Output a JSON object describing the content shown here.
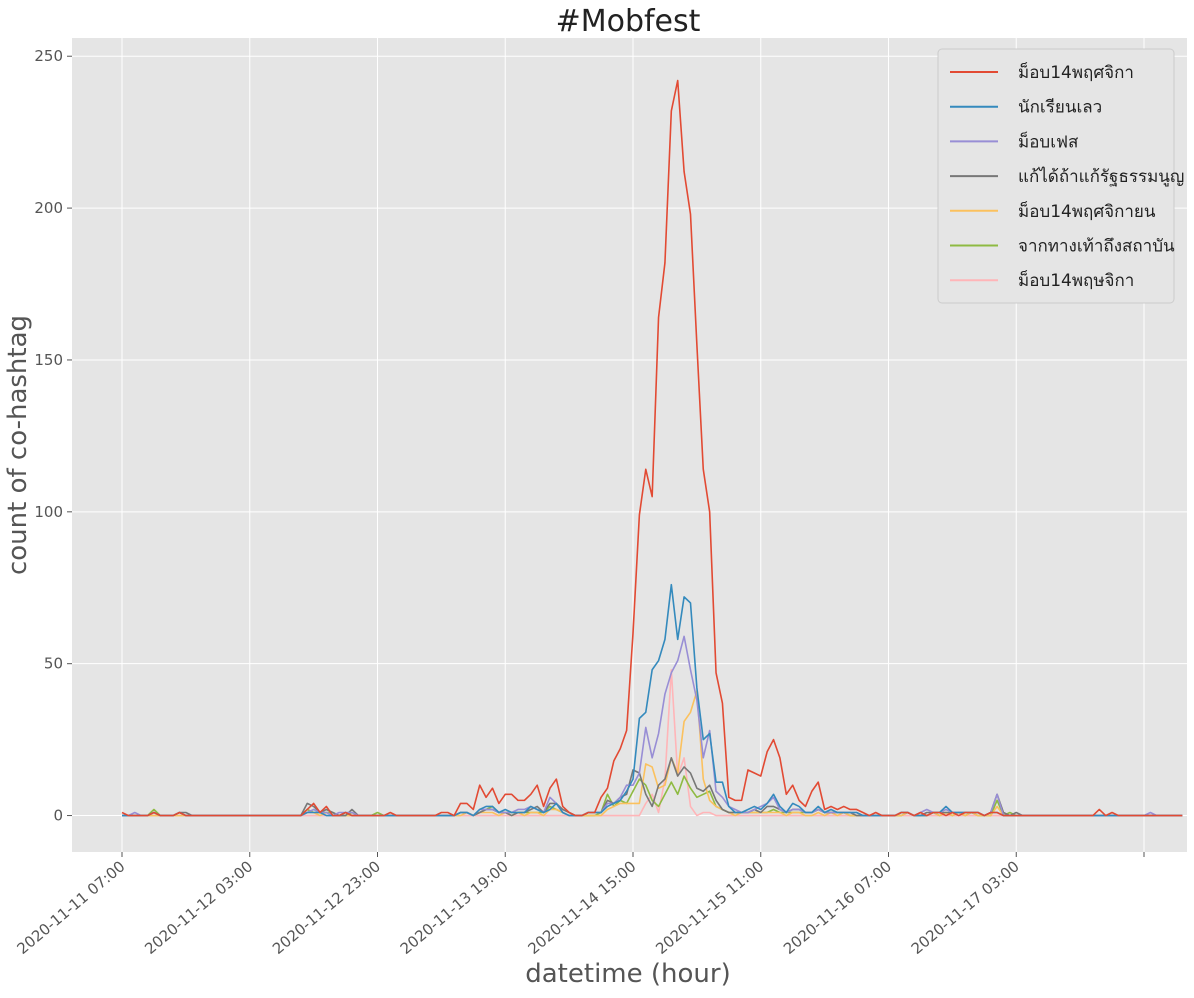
{
  "chart_data": {
    "type": "line",
    "title": "#Mobfest",
    "xlabel": "datetime (hour)",
    "ylabel": "count of co-hashtag",
    "ylim": [
      -12,
      256
    ],
    "yticks": [
      0,
      50,
      100,
      150,
      200,
      250
    ],
    "x_start": "2020-11-11 07:00",
    "x_step_hours": 1,
    "xticks": [
      "2020-11-11 07:00",
      "2020-11-12 03:00",
      "2020-11-12 23:00",
      "2020-11-13 19:00",
      "2020-11-14 15:00",
      "2020-11-15 11:00",
      "2020-11-16 07:00",
      "2020-11-17 03:00"
    ],
    "grid": true,
    "legend_position": "top-right",
    "series": [
      {
        "name": "ม็อบ14พฤศจิกา",
        "color": "#E24A33",
        "values": [
          1,
          0,
          0,
          0,
          0,
          1,
          0,
          0,
          0,
          1,
          0,
          0,
          0,
          0,
          0,
          0,
          0,
          0,
          0,
          0,
          0,
          0,
          0,
          0,
          0,
          0,
          0,
          0,
          0,
          2,
          4,
          1,
          3,
          0,
          0,
          1,
          0,
          0,
          0,
          0,
          0,
          0,
          1,
          0,
          0,
          0,
          0,
          0,
          0,
          0,
          1,
          1,
          0,
          4,
          4,
          2,
          10,
          6,
          9,
          4,
          7,
          7,
          5,
          5,
          7,
          10,
          3,
          9,
          12,
          3,
          1,
          0,
          0,
          1,
          1,
          6,
          9,
          18,
          22,
          28,
          60,
          99,
          114,
          105,
          164,
          182,
          232,
          242,
          212,
          198,
          155,
          114,
          100,
          47,
          37,
          6,
          5,
          5,
          15,
          14,
          13,
          21,
          25,
          19,
          7,
          10,
          5,
          3,
          8,
          11,
          2,
          3,
          2,
          3,
          2,
          2,
          1,
          0,
          1,
          0,
          0,
          0,
          1,
          1,
          0,
          1,
          0,
          1,
          1,
          0,
          1,
          0,
          1,
          1,
          1,
          0,
          1,
          1,
          0,
          0,
          0,
          0,
          0,
          0,
          0,
          0,
          0,
          0,
          0,
          0,
          0,
          0,
          0,
          2,
          0,
          1,
          0,
          0,
          0,
          0,
          0,
          0,
          0,
          0,
          0,
          0,
          0
        ]
      },
      {
        "name": "นักเรียนเลว",
        "color": "#348ABD",
        "values": [
          0,
          0,
          0,
          0,
          0,
          1,
          0,
          0,
          0,
          1,
          0,
          0,
          0,
          0,
          0,
          0,
          0,
          0,
          0,
          0,
          0,
          0,
          0,
          0,
          0,
          0,
          0,
          0,
          0,
          1,
          1,
          1,
          0,
          0,
          0,
          1,
          0,
          0,
          0,
          0,
          0,
          0,
          0,
          0,
          0,
          0,
          0,
          0,
          0,
          0,
          0,
          0,
          0,
          1,
          1,
          0,
          2,
          3,
          3,
          1,
          2,
          1,
          1,
          1,
          3,
          2,
          1,
          2,
          4,
          1,
          0,
          0,
          0,
          1,
          1,
          1,
          3,
          4,
          5,
          8,
          12,
          32,
          34,
          48,
          51,
          58,
          76,
          58,
          72,
          70,
          42,
          25,
          27,
          11,
          11,
          3,
          1,
          1,
          2,
          3,
          2,
          4,
          7,
          3,
          1,
          4,
          3,
          1,
          1,
          3,
          1,
          2,
          1,
          1,
          1,
          1,
          0,
          0,
          0,
          0,
          0,
          0,
          1,
          1,
          0,
          0,
          0,
          1,
          1,
          3,
          1,
          1,
          1,
          1,
          1,
          0,
          1,
          1,
          0,
          0,
          0,
          0,
          0,
          0,
          0,
          0,
          0,
          0,
          0,
          0,
          0,
          0,
          0,
          0,
          0,
          0,
          0,
          0,
          0,
          0,
          0,
          0,
          0,
          0,
          0,
          0,
          0
        ]
      },
      {
        "name": "ม็อบเฟส",
        "color": "#988ED5",
        "values": [
          0,
          0,
          1,
          0,
          0,
          1,
          0,
          0,
          0,
          1,
          0,
          0,
          0,
          0,
          0,
          0,
          0,
          0,
          0,
          0,
          0,
          0,
          0,
          0,
          0,
          0,
          0,
          0,
          0,
          1,
          2,
          1,
          1,
          0,
          1,
          1,
          1,
          0,
          0,
          0,
          0,
          0,
          0,
          0,
          0,
          0,
          0,
          0,
          0,
          0,
          0,
          0,
          0,
          1,
          1,
          0,
          2,
          2,
          2,
          1,
          1,
          1,
          2,
          2,
          3,
          2,
          1,
          6,
          4,
          1,
          0,
          0,
          0,
          1,
          1,
          1,
          4,
          4,
          6,
          10,
          10,
          14,
          29,
          19,
          27,
          40,
          47,
          51,
          59,
          48,
          38,
          19,
          28,
          8,
          6,
          3,
          2,
          1,
          1,
          2,
          3,
          4,
          6,
          2,
          1,
          2,
          2,
          1,
          1,
          2,
          1,
          1,
          1,
          1,
          1,
          1,
          0,
          0,
          0,
          0,
          0,
          0,
          1,
          1,
          0,
          1,
          2,
          1,
          1,
          2,
          1,
          1,
          1,
          1,
          1,
          0,
          1,
          7,
          0,
          0,
          0,
          0,
          0,
          0,
          0,
          0,
          0,
          0,
          0,
          0,
          0,
          0,
          0,
          0,
          0,
          0,
          0,
          0,
          0,
          0,
          0,
          1,
          0,
          0,
          0,
          0,
          0
        ]
      },
      {
        "name": "แก้ได้ถ้าแก้รัฐธรรมนูญ",
        "color": "#777777",
        "values": [
          0,
          0,
          0,
          0,
          0,
          1,
          0,
          0,
          0,
          1,
          1,
          0,
          0,
          0,
          0,
          0,
          0,
          0,
          0,
          0,
          0,
          0,
          0,
          0,
          0,
          0,
          0,
          0,
          0,
          4,
          3,
          1,
          2,
          1,
          0,
          0,
          2,
          0,
          0,
          0,
          0,
          0,
          0,
          0,
          0,
          0,
          0,
          0,
          0,
          0,
          0,
          0,
          0,
          1,
          1,
          0,
          1,
          2,
          2,
          1,
          1,
          0,
          1,
          1,
          2,
          3,
          1,
          4,
          4,
          2,
          1,
          0,
          0,
          1,
          1,
          1,
          5,
          4,
          6,
          7,
          15,
          14,
          7,
          3,
          10,
          12,
          19,
          13,
          16,
          14,
          9,
          8,
          10,
          5,
          2,
          1,
          1,
          1,
          1,
          2,
          1,
          3,
          3,
          2,
          1,
          2,
          2,
          1,
          1,
          2,
          1,
          1,
          1,
          1,
          1,
          0,
          0,
          0,
          0,
          0,
          0,
          0,
          1,
          1,
          0,
          0,
          1,
          1,
          1,
          1,
          1,
          1,
          1,
          1,
          1,
          0,
          1,
          7,
          1,
          0,
          1,
          0,
          0,
          0,
          0,
          0,
          0,
          0,
          0,
          0,
          0,
          0,
          0,
          0,
          0,
          0,
          0,
          0,
          0,
          0,
          0,
          0,
          0,
          0,
          0,
          0,
          0
        ]
      },
      {
        "name": "ม็อบ14พฤศจิกายน",
        "color": "#FBC15E",
        "values": [
          0,
          0,
          0,
          0,
          0,
          0,
          0,
          0,
          0,
          0,
          0,
          0,
          0,
          0,
          0,
          0,
          0,
          0,
          0,
          0,
          0,
          0,
          0,
          0,
          0,
          0,
          0,
          0,
          0,
          1,
          1,
          0,
          1,
          0,
          0,
          0,
          0,
          0,
          0,
          0,
          0,
          0,
          0,
          0,
          0,
          0,
          0,
          0,
          0,
          0,
          0,
          0,
          0,
          0,
          1,
          0,
          1,
          1,
          1,
          0,
          1,
          0,
          1,
          0,
          1,
          1,
          0,
          2,
          2,
          1,
          0,
          0,
          0,
          0,
          0,
          0,
          2,
          3,
          4,
          4,
          4,
          4,
          17,
          16,
          9,
          10,
          19,
          14,
          31,
          34,
          41,
          12,
          5,
          3,
          2,
          1,
          0,
          1,
          1,
          1,
          1,
          1,
          1,
          1,
          0,
          1,
          1,
          0,
          0,
          1,
          0,
          1,
          0,
          1,
          0,
          0,
          0,
          0,
          0,
          0,
          0,
          0,
          0,
          1,
          0,
          0,
          0,
          1,
          0,
          1,
          0,
          1,
          0,
          1,
          0,
          0,
          0,
          3,
          0,
          0,
          0,
          0,
          0,
          0,
          0,
          0,
          0,
          0,
          0,
          0,
          0,
          0,
          0,
          0,
          0,
          0,
          0,
          0,
          0,
          0,
          0,
          0,
          0,
          0,
          0,
          0,
          0
        ]
      },
      {
        "name": "จากทางเท้าถึงสถาบัน",
        "color": "#8EBA42",
        "values": [
          0,
          0,
          0,
          0,
          0,
          2,
          0,
          0,
          0,
          1,
          0,
          0,
          0,
          0,
          0,
          0,
          0,
          0,
          0,
          0,
          0,
          0,
          0,
          0,
          0,
          0,
          0,
          0,
          0,
          2,
          1,
          1,
          1,
          1,
          0,
          0,
          1,
          0,
          0,
          0,
          1,
          0,
          0,
          0,
          0,
          0,
          0,
          0,
          0,
          0,
          0,
          0,
          0,
          1,
          1,
          0,
          1,
          2,
          3,
          1,
          1,
          1,
          1,
          1,
          1,
          1,
          1,
          3,
          2,
          1,
          0,
          0,
          0,
          0,
          0,
          1,
          7,
          3,
          5,
          4,
          8,
          12,
          10,
          5,
          3,
          7,
          11,
          7,
          13,
          9,
          6,
          7,
          8,
          3,
          2,
          1,
          1,
          1,
          1,
          1,
          1,
          1,
          2,
          1,
          1,
          1,
          1,
          1,
          1,
          2,
          1,
          1,
          1,
          1,
          0,
          0,
          0,
          0,
          0,
          0,
          0,
          0,
          0,
          1,
          0,
          0,
          0,
          1,
          0,
          1,
          0,
          1,
          0,
          1,
          0,
          0,
          0,
          5,
          0,
          1,
          0,
          0,
          0,
          0,
          0,
          0,
          0,
          0,
          0,
          0,
          0,
          0,
          0,
          0,
          0,
          0,
          0,
          0,
          0,
          0,
          0,
          0,
          0,
          0,
          0,
          0,
          0
        ]
      },
      {
        "name": "ม็อบ14พฤษจิกา",
        "color": "#FFB5B8",
        "values": [
          0,
          0,
          0,
          0,
          0,
          0,
          0,
          0,
          0,
          0,
          0,
          0,
          0,
          0,
          0,
          0,
          0,
          0,
          0,
          0,
          0,
          0,
          0,
          0,
          0,
          0,
          0,
          0,
          0,
          0,
          0,
          0,
          0,
          0,
          0,
          0,
          0,
          0,
          0,
          0,
          0,
          0,
          0,
          0,
          0,
          0,
          0,
          0,
          0,
          0,
          0,
          0,
          0,
          0,
          0,
          0,
          0,
          0,
          0,
          0,
          0,
          0,
          0,
          0,
          0,
          0,
          0,
          0,
          0,
          0,
          0,
          0,
          0,
          0,
          0,
          0,
          0,
          0,
          0,
          0,
          0,
          0,
          4,
          7,
          1,
          12,
          48,
          13,
          19,
          3,
          0,
          1,
          1,
          0,
          0,
          0,
          0,
          0,
          0,
          0,
          0,
          0,
          0,
          0,
          0,
          0,
          0,
          0,
          0,
          0,
          0,
          0,
          0,
          0,
          0,
          0,
          0,
          0,
          0,
          0,
          0,
          0,
          0,
          0,
          0,
          0,
          0,
          0,
          0,
          0,
          0,
          0,
          0,
          0,
          0,
          0,
          0,
          0,
          0,
          0,
          0,
          0,
          0,
          0,
          0,
          0,
          0,
          0,
          0,
          0,
          0,
          0,
          0,
          0,
          0,
          0,
          0,
          0,
          0,
          0,
          0,
          0,
          0,
          0,
          0,
          0,
          0
        ]
      }
    ]
  }
}
